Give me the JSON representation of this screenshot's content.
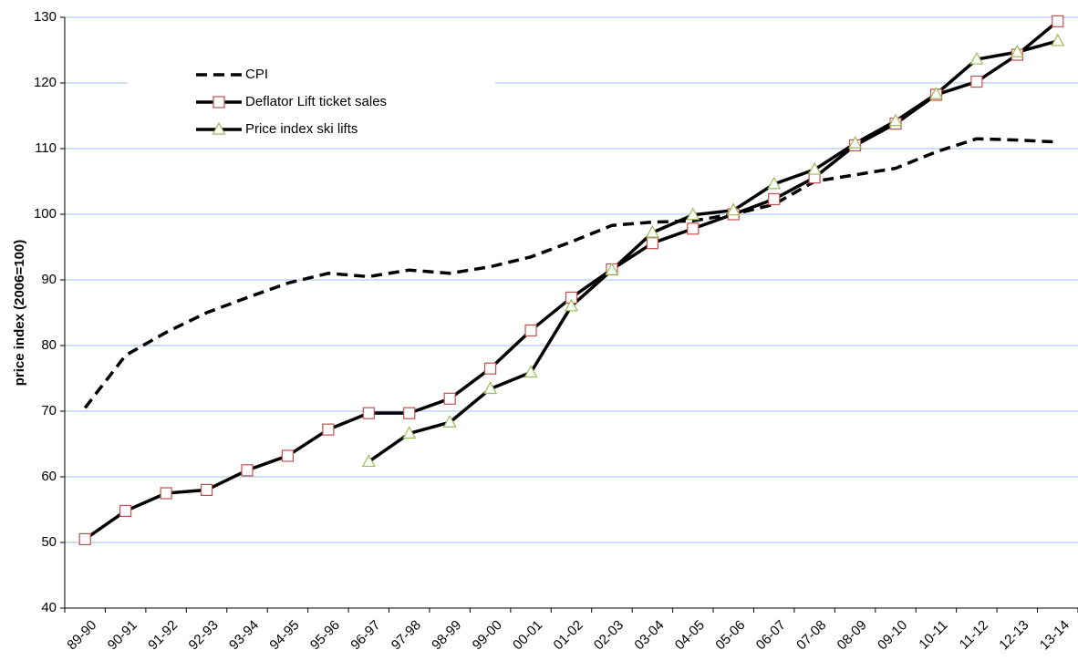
{
  "chart_data": {
    "type": "line",
    "y_label": "price index (2006=100)",
    "categories": [
      "89-90",
      "90-91",
      "91-92",
      "92-93",
      "93-94",
      "94-95",
      "95-96",
      "96-97",
      "97-98",
      "98-99",
      "99-00",
      "00-01",
      "01-02",
      "02-03",
      "03-04",
      "04-05",
      "05-06",
      "06-07",
      "07-08",
      "08-09",
      "09-10",
      "10-11",
      "11-12",
      "12-13",
      "13-14"
    ],
    "series": [
      {
        "name": "CPI",
        "color": "#000000",
        "dash": true,
        "marker": "none",
        "values": [
          70.5,
          78.5,
          82,
          85,
          87.3,
          89.5,
          91,
          90.5,
          91.5,
          91,
          92,
          93.5,
          95.8,
          98.3,
          98.8,
          99,
          100,
          101.5,
          105,
          106,
          107,
          109.5,
          111.5,
          111.3,
          111
        ]
      },
      {
        "name": "Deflator Lift ticket sales",
        "color": "#000000",
        "dash": false,
        "marker": "square",
        "marker_color": "#c0504d",
        "values": [
          50.5,
          54.8,
          57.5,
          58,
          61,
          63.2,
          67.2,
          69.7,
          69.7,
          71.9,
          76.5,
          82.3,
          87.3,
          91.6,
          95.6,
          97.8,
          100,
          102.3,
          105.6,
          110.5,
          113.8,
          118.2,
          120.2,
          124.3,
          129.4
        ]
      },
      {
        "name": "Price index ski lifts",
        "color": "#000000",
        "dash": false,
        "marker": "triangle",
        "marker_color": "#9bbb59",
        "values": [
          null,
          null,
          null,
          null,
          null,
          null,
          null,
          62.3,
          66.6,
          68.3,
          73.4,
          75.9,
          86,
          91.5,
          97.2,
          99.9,
          100.6,
          104.6,
          106.8,
          110.8,
          114.2,
          118.3,
          123.6,
          124.7,
          126.4
        ]
      }
    ],
    "ylim": [
      40,
      130
    ],
    "yticks": [
      40,
      50,
      60,
      70,
      80,
      90,
      100,
      110,
      120,
      130
    ],
    "grid": true,
    "grid_color": "#a6bde0",
    "legend": "upper-left"
  }
}
